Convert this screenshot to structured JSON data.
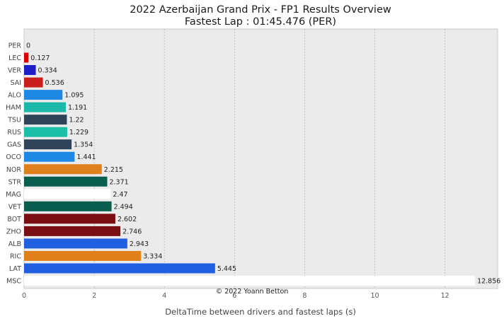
{
  "chart_data": {
    "type": "bar",
    "orientation": "horizontal",
    "title": "2022 Azerbaijan Grand Prix - FP1 Results Overview",
    "subtitle": "Fastest Lap : 01:45.476 (PER)",
    "xlabel": "DeltaTime between drivers and fastest laps (s)",
    "ylabel": "",
    "xlim": [
      0,
      13.5
    ],
    "xticks": [
      0,
      2,
      4,
      6,
      8,
      10,
      12
    ],
    "grid": true,
    "categories": [
      "PER",
      "LEC",
      "VER",
      "SAI",
      "ALO",
      "HAM",
      "TSU",
      "RUS",
      "GAS",
      "OCO",
      "NOR",
      "STR",
      "MAG",
      "VET",
      "BOT",
      "ZHO",
      "ALB",
      "RIC",
      "LAT",
      "MSC"
    ],
    "values": [
      0,
      0.127,
      0.334,
      0.536,
      1.095,
      1.191,
      1.22,
      1.229,
      1.354,
      1.441,
      2.215,
      2.371,
      2.47,
      2.494,
      2.602,
      2.746,
      2.943,
      3.334,
      5.445,
      12.856
    ],
    "value_labels": [
      "0",
      "0.127",
      "0.334",
      "0.536",
      "1.095",
      "1.191",
      "1.22",
      "1.229",
      "1.354",
      "1.441",
      "2.215",
      "2.371",
      "2.47",
      "2.494",
      "2.602",
      "2.746",
      "2.943",
      "3.334",
      "5.445",
      "12.856"
    ],
    "colors": [
      "#1e41ff",
      "#dc0000",
      "#1e1ec8",
      "#c81e1e",
      "#1e88e5",
      "#1bb9aa",
      "#2f4459",
      "#1bbfa8",
      "#2f4459",
      "#1e88e5",
      "#e0801a",
      "#0a5e50",
      "#ffffff",
      "#0a5e50",
      "#7a0e12",
      "#7a0e12",
      "#1f5fe0",
      "#e0801a",
      "#1f5fe0",
      "#ffffff"
    ],
    "annotation": "© 2022 Yoann Betton"
  }
}
